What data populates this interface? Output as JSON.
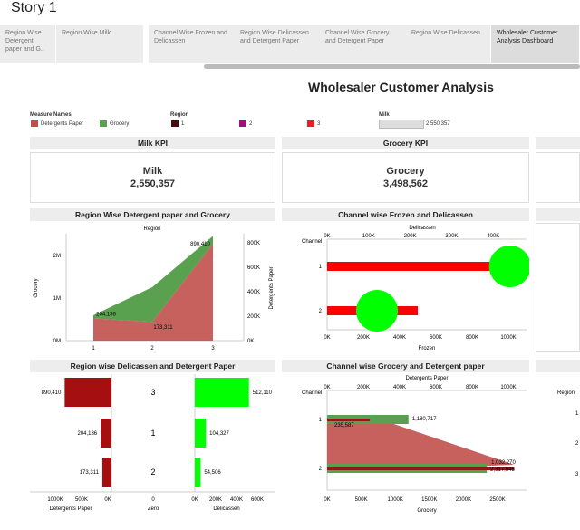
{
  "story_title": "Story 1",
  "tabs": [
    {
      "label": "Region Wise Detergent paper and G..",
      "active": false
    },
    {
      "label": "Region Wise Milk",
      "active": false
    },
    {
      "label": "Channel Wise Frozen and Delicassen",
      "active": false
    },
    {
      "label": "Region Wise Delicassen and Detergent Paper",
      "active": false
    },
    {
      "label": "Channel Wise Grocery and Detergent Paper",
      "active": false
    },
    {
      "label": "Region Wise Delicassen",
      "active": false
    },
    {
      "label": "Wholesaler Customer Analysis Dashboard",
      "active": true
    }
  ],
  "dashboard_title": "Wholesaler Customer Analysis",
  "legends": {
    "measure_names": {
      "title": "Measure Names",
      "items": [
        {
          "label": "Detergents Paper",
          "color": "#c0504d"
        },
        {
          "label": "Grocery",
          "color": "#59a14f"
        }
      ]
    },
    "region": {
      "title": "Region",
      "items": [
        {
          "label": "1",
          "color": "#4a0d0d"
        },
        {
          "label": "2",
          "color": "#a0107f"
        },
        {
          "label": "3",
          "color": "#ee1c24"
        }
      ]
    },
    "milk": {
      "title": "Milk",
      "value": "2,550,357"
    }
  },
  "colors": {
    "detergent": "#c0504d",
    "grocery": "#59a14f",
    "dark_red": "#a50f0f",
    "bright_green": "#00ff00",
    "red": "#ff0000"
  },
  "kpis": [
    {
      "header": "Milk KPI",
      "title": "Milk",
      "value": "2,550,357"
    },
    {
      "header": "Grocery KPI",
      "title": "Grocery",
      "value": "3,498,562"
    }
  ],
  "chart_data": [
    {
      "type": "area",
      "title": "Region Wise Detergent paper and Grocery",
      "top_label": "Region",
      "xlabel": "",
      "ylabel_left": "Grocery",
      "ylabel_right": "Detergents Paper",
      "categories": [
        "1",
        "2",
        "3"
      ],
      "series": [
        {
          "name": "Detergents Paper",
          "values": [
            204136,
            173311,
            890410
          ]
        },
        {
          "name": "Grocery",
          "values": [
            570000,
            1200000,
            2350000
          ]
        }
      ],
      "left_ticks": [
        "0M",
        "1M",
        "2M"
      ],
      "right_ticks": [
        "0K",
        "200K",
        "400K",
        "600K",
        "800K"
      ],
      "labels": [
        "204,136",
        "173,311",
        "890,410"
      ]
    },
    {
      "type": "bar",
      "title": "Channel wise Frozen and Delicassen",
      "top_label": "Delicassen",
      "row_header": "Channel",
      "xlabel": "Frozen",
      "categories": [
        "1",
        "2"
      ],
      "frozen": [
        1000000,
        500000
      ],
      "delicassen": [
        440000,
        120000
      ],
      "top_ticks": [
        "0K",
        "100K",
        "200K",
        "300K",
        "400K"
      ],
      "bottom_ticks": [
        "0K",
        "200K",
        "400K",
        "600K",
        "800K",
        "1000K"
      ]
    },
    {
      "type": "bar",
      "title": "Region wise Delicassen and Detergent Paper",
      "categories": [
        "3",
        "1",
        "2"
      ],
      "detergents_paper": [
        890410,
        204136,
        173311
      ],
      "delicassen": [
        512110,
        104327,
        54506
      ],
      "detergent_labels": [
        "890,410",
        "204,136",
        "173,311"
      ],
      "delicassen_labels": [
        "512,110",
        "104,327",
        "54,506"
      ],
      "left_ticks": [
        "1000K",
        "500K",
        "0K"
      ],
      "mid_ticks": [
        "0"
      ],
      "right_ticks": [
        "0K",
        "200K",
        "400K",
        "600K"
      ],
      "xlabel_left": "Detergents Paper",
      "xlabel_mid": "Zero",
      "xlabel_right": "Delicassen"
    },
    {
      "type": "bar",
      "title": "Channel wise Grocery and Detergent paper",
      "top_label": "Detergents Paper",
      "row_header": "Channel",
      "xlabel": "Grocery",
      "categories": [
        "1",
        "2"
      ],
      "grocery": [
        1180717,
        2317845
      ],
      "detergents_paper": [
        235587,
        1032270
      ],
      "grocery_labels": [
        "1,180,717",
        "2,317,845"
      ],
      "detergent_labels": [
        "235,587",
        "1,032,270"
      ],
      "top_ticks": [
        "0K",
        "200K",
        "400K",
        "600K",
        "800K",
        "1000K"
      ],
      "bottom_ticks": [
        "0K",
        "500K",
        "1000K",
        "1500K",
        "2000K",
        "2500K"
      ]
    }
  ],
  "partial_panels": {
    "region_header": "Region",
    "row_labels": [
      "1",
      "2",
      "3"
    ]
  }
}
